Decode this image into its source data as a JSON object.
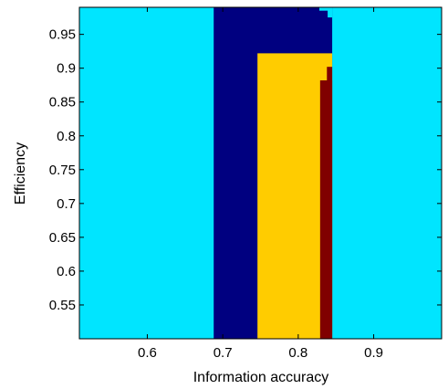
{
  "chart_data": {
    "type": "heatmap",
    "title": "",
    "xlabel": "Information accuracy",
    "ylabel": "Efficiency",
    "xlim": [
      0.51,
      0.99
    ],
    "ylim": [
      0.5,
      0.99
    ],
    "xticks": [
      {
        "value": 0.6,
        "label": "0.6"
      },
      {
        "value": 0.7,
        "label": "0.7"
      },
      {
        "value": 0.8,
        "label": "0.8"
      },
      {
        "value": 0.9,
        "label": "0.9"
      }
    ],
    "yticks": [
      {
        "value": 0.55,
        "label": "0.55"
      },
      {
        "value": 0.6,
        "label": "0.6"
      },
      {
        "value": 0.65,
        "label": "0.65"
      },
      {
        "value": 0.7,
        "label": "0.7"
      },
      {
        "value": 0.75,
        "label": "0.75"
      },
      {
        "value": 0.8,
        "label": "0.8"
      },
      {
        "value": 0.85,
        "label": "0.85"
      },
      {
        "value": 0.9,
        "label": "0.9"
      },
      {
        "value": 0.95,
        "label": "0.95"
      }
    ],
    "grid": false,
    "background_color": "#00e5ff",
    "regions": [
      {
        "color": "#000080",
        "x": [
          0.688,
          0.845
        ],
        "y": [
          0.5,
          0.99
        ]
      },
      {
        "color": "#00e5ff",
        "x": [
          0.828,
          0.845
        ],
        "y": [
          0.985,
          0.99
        ]
      },
      {
        "color": "#00e5ff",
        "x": [
          0.839,
          0.845
        ],
        "y": [
          0.975,
          0.99
        ]
      },
      {
        "color": "#ffcc00",
        "x": [
          0.746,
          0.845
        ],
        "y": [
          0.5,
          0.922
        ]
      },
      {
        "color": "#800000",
        "x": [
          0.829,
          0.845
        ],
        "y": [
          0.5,
          0.882
        ]
      },
      {
        "color": "#800000",
        "x": [
          0.838,
          0.845
        ],
        "y": [
          0.5,
          0.902
        ]
      }
    ]
  }
}
